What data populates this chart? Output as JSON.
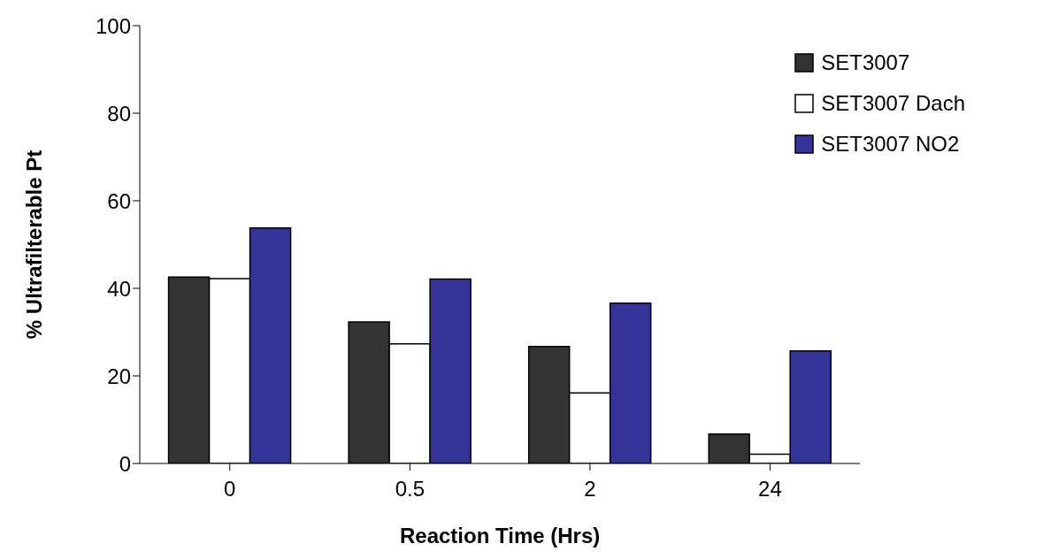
{
  "chart_data": {
    "type": "bar",
    "xlabel": "Reaction Time (Hrs)",
    "ylabel": "% Ultrafilterable Pt",
    "categories": [
      "0",
      "0.5",
      "2",
      "24"
    ],
    "series": [
      {
        "name": "SET3007",
        "color": "#333333",
        "values": [
          42.6,
          32.3,
          26.7,
          6.7
        ]
      },
      {
        "name": "SET3007 Dach",
        "color": "#ffffff",
        "values": [
          42.2,
          27.3,
          16.1,
          2.1
        ]
      },
      {
        "name": "SET3007 NO2",
        "color": "#333399",
        "values": [
          53.8,
          42.1,
          36.6,
          25.7
        ]
      }
    ],
    "ylim": [
      0,
      100
    ],
    "yticks": [
      0,
      20,
      40,
      60,
      80,
      100
    ],
    "grid": false,
    "legend": "top right"
  }
}
